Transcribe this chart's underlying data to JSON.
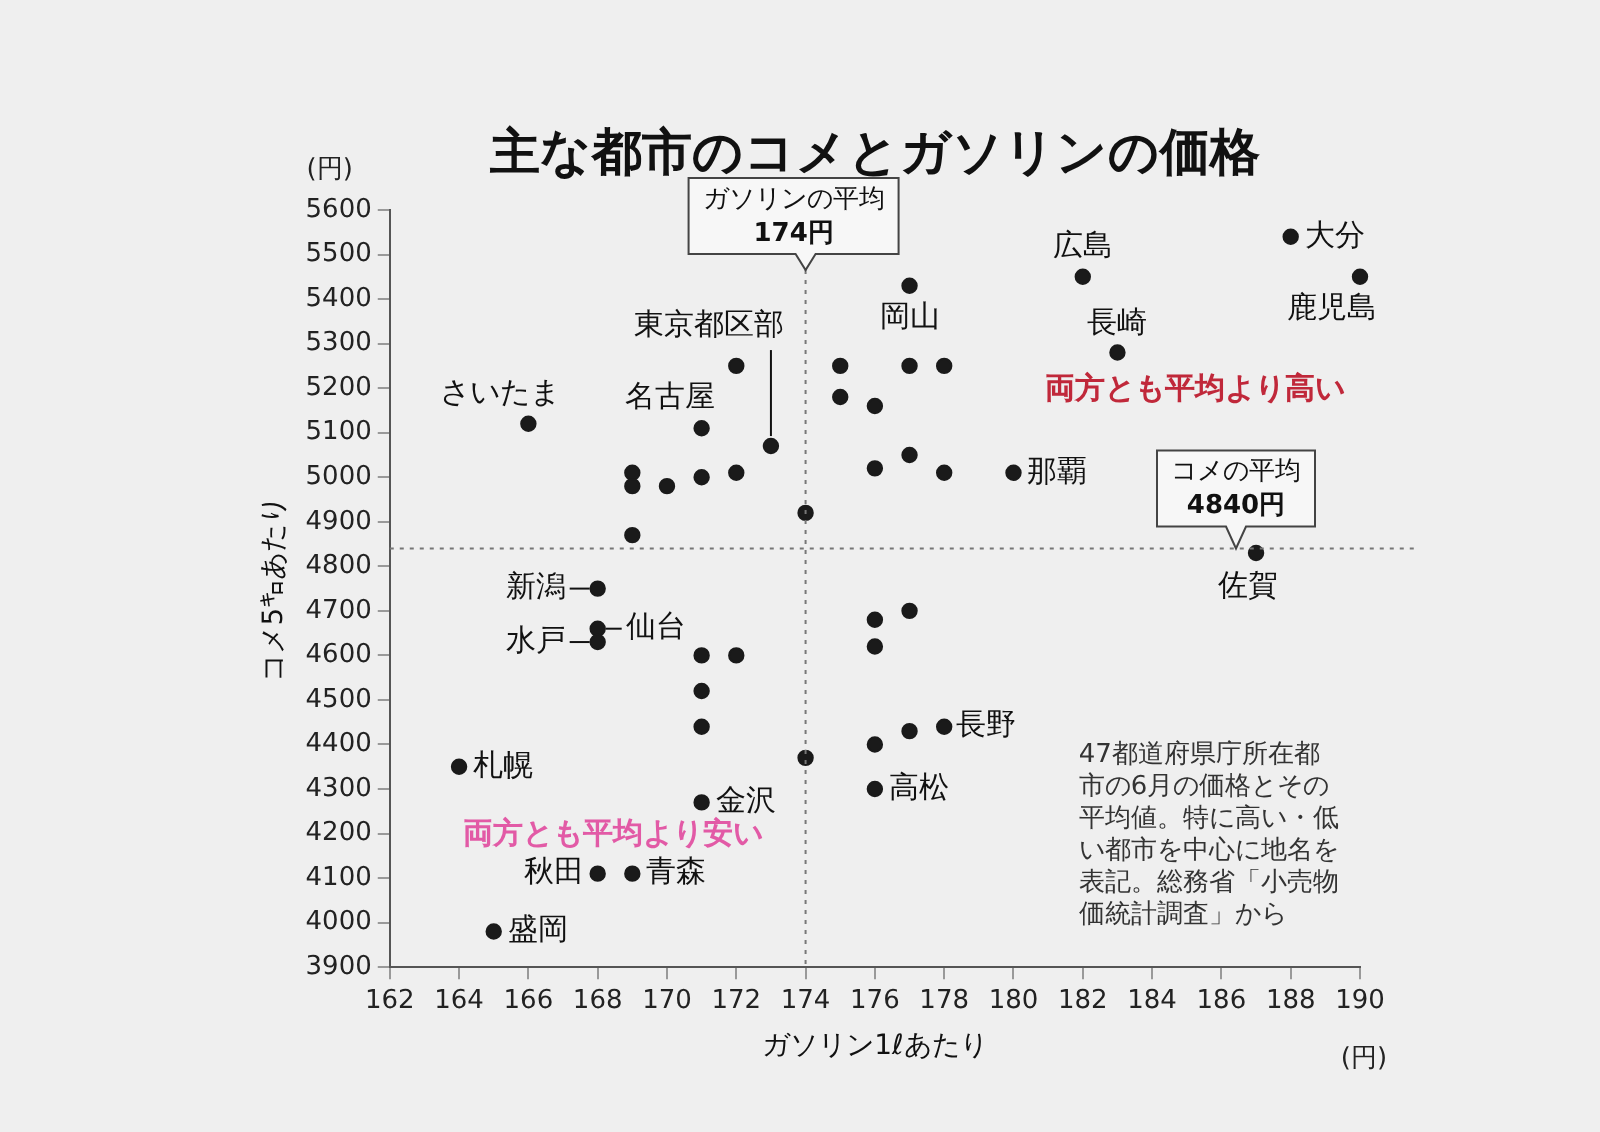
{
  "chart_data": {
    "type": "scatter",
    "title": "主な都市のコメとガソリンの価格",
    "xlabel": "ガソリン1ℓあたり",
    "ylabel": "コメ5㌔あたり",
    "x": [
      166,
      169,
      169,
      170,
      171,
      171,
      172,
      172,
      173,
      174,
      169,
      175,
      175,
      176,
      177,
      177,
      176,
      177,
      178,
      178,
      180,
      182,
      183,
      188,
      190,
      187,
      168,
      168,
      168,
      171,
      172,
      171,
      171,
      164,
      171,
      168,
      169,
      165,
      174,
      176,
      177,
      176,
      176,
      177,
      176,
      178
    ],
    "values": [
      5120,
      5010,
      4980,
      4980,
      5000,
      5110,
      5250,
      5010,
      5070,
      4920,
      4870,
      5250,
      5180,
      5160,
      5250,
      5430,
      5020,
      5050,
      5250,
      5010,
      5010,
      5450,
      5280,
      5540,
      5450,
      4830,
      4750,
      4660,
      4630,
      4600,
      4600,
      4520,
      4440,
      4350,
      4270,
      4110,
      4110,
      3980,
      4370,
      4680,
      4700,
      4620,
      4400,
      4430,
      4300,
      4440
    ],
    "color": "#1a1a1a",
    "marker": "circle",
    "grid": false,
    "legend": false,
    "xlim": [
      162,
      190
    ],
    "xticks": [
      162,
      164,
      166,
      168,
      170,
      172,
      174,
      176,
      178,
      180,
      182,
      184,
      186,
      188,
      190
    ],
    "ylim": [
      3900,
      5600
    ],
    "yticks": [
      3900,
      4000,
      4100,
      4200,
      4300,
      4400,
      4500,
      4600,
      4700,
      4800,
      4900,
      5000,
      5100,
      5200,
      5300,
      5400,
      5500,
      5600
    ],
    "ref_lines": [
      {
        "axis": "x",
        "value": 174,
        "label": "ガソリンの平均\n174円",
        "line_style": "dotted",
        "color": "#777777"
      },
      {
        "axis": "y",
        "value": 4840,
        "label": "コメの平均\n4840円",
        "line_style": "dotted",
        "color": "#777777"
      }
    ],
    "annotations": [
      {
        "text": "さいたま",
        "x": 166,
        "y": 5120
      },
      {
        "text": "名古屋",
        "x": 171,
        "y": 5110
      },
      {
        "text": "東京都区部",
        "x": 173,
        "y": 5070
      },
      {
        "text": "岡山",
        "x": 177,
        "y": 5430
      },
      {
        "text": "広島",
        "x": 182,
        "y": 5450
      },
      {
        "text": "長崎",
        "x": 183,
        "y": 5280
      },
      {
        "text": "大分",
        "x": 188,
        "y": 5540
      },
      {
        "text": "鹿児島",
        "x": 190,
        "y": 5450
      },
      {
        "text": "那覇",
        "x": 180,
        "y": 5010
      },
      {
        "text": "佐賀",
        "x": 187,
        "y": 4830
      },
      {
        "text": "新潟",
        "x": 168,
        "y": 4750
      },
      {
        "text": "仙台",
        "x": 168,
        "y": 4660
      },
      {
        "text": "水戸",
        "x": 168,
        "y": 4630
      },
      {
        "text": "札幌",
        "x": 164,
        "y": 4350
      },
      {
        "text": "金沢",
        "x": 171,
        "y": 4270
      },
      {
        "text": "秋田",
        "x": 168,
        "y": 4110
      },
      {
        "text": "青森",
        "x": 169,
        "y": 4110
      },
      {
        "text": "盛岡",
        "x": 165,
        "y": 3980
      },
      {
        "text": "高松",
        "x": 176,
        "y": 4300
      },
      {
        "text": "長野",
        "x": 178,
        "y": 4440
      },
      "両方とも平均より高い",
      "両方とも平均より安い",
      "47都道府県庁所在都市の6月の価格とその平均値。特に高い・低い都市を中心に地名を表記。総務省「小売物価統計調査」から",
      "(円)",
      "(円)"
    ]
  }
}
